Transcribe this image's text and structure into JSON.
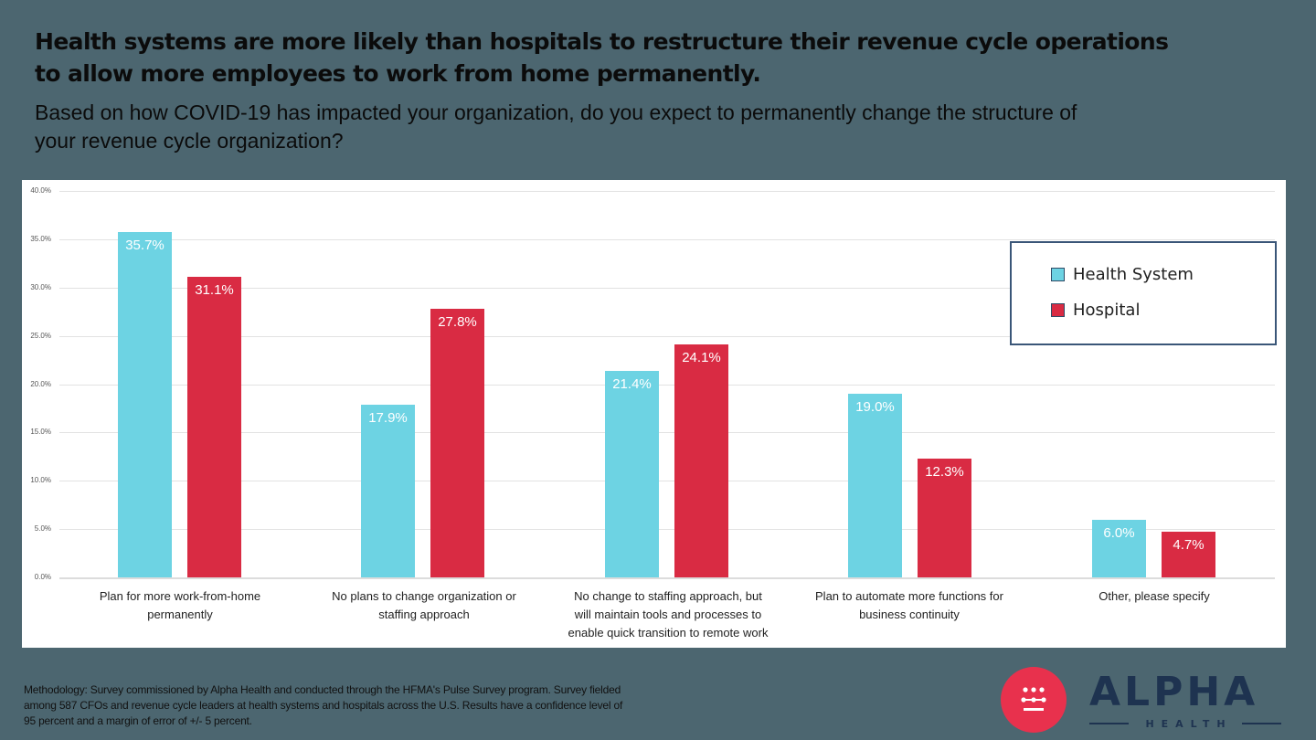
{
  "headline": {
    "line1": "Health systems are more likely than hospitals to restructure their revenue cycle operations",
    "line2": "to allow more employees to work from home permanently."
  },
  "subtitle": {
    "line1": "Based on how COVID-19 has impacted your organization, do you expect to permanently change the structure of",
    "line2": "your revenue cycle organization?"
  },
  "chart_data": {
    "type": "bar",
    "title": "Based on how COVID-19 has impacted your organization, do you expect to permanently change the structure of your revenue cycle organization?",
    "categories": [
      "Plan for more work-from-home permanently",
      "No plans to change organization or staffing approach",
      "No change to staffing approach, but will maintain tools  and processes to enable quick transition to remote work",
      "Plan to automate more functions for business continuity",
      "Other, please specify"
    ],
    "category_lines": [
      [
        "Plan for more work-from-home",
        "permanently"
      ],
      [
        "No plans to change organization or",
        "staffing approach"
      ],
      [
        "No change to staffing approach, but",
        "will maintain tools  and processes to",
        "enable quick transition to remote work"
      ],
      [
        "Plan to automate more functions for",
        "business continuity"
      ],
      [
        "Other, please specify"
      ]
    ],
    "series": [
      {
        "name": "Health System",
        "color": "#6dd3e3",
        "values": [
          35.7,
          17.9,
          21.4,
          19.0,
          6.0
        ],
        "labels": [
          "35.7%",
          "17.9%",
          "21.4%",
          "19.0%",
          "6.0%"
        ]
      },
      {
        "name": "Hospital",
        "color": "#d92b43",
        "values": [
          31.1,
          27.8,
          24.1,
          12.3,
          4.7
        ],
        "labels": [
          "31.1%",
          "27.8%",
          "24.1%",
          "12.3%",
          "4.7%"
        ]
      }
    ],
    "xlabel": "",
    "ylabel": "",
    "ylim": [
      0,
      40
    ],
    "yticks": [
      "0.0%",
      "5.0%",
      "10.0%",
      "15.0%",
      "20.0%",
      "25.0%",
      "30.0%",
      "35.0%",
      "40.0%"
    ],
    "grid": true,
    "legend_position": "upper right"
  },
  "legend": {
    "items": [
      {
        "label": "Health System",
        "color": "#6dd3e3"
      },
      {
        "label": "Hospital",
        "color": "#d92b43"
      }
    ]
  },
  "footer": {
    "methodology_lines": [
      "Methodology: Survey commissioned by Alpha Health and conducted through the HFMA's Pulse Survey program. Survey fielded",
      "among 587 CFOs and revenue cycle leaders at health systems and hospitals across the U.S. Results have a confidence level of",
      "95 percent and a margin of error of +/- 5 percent."
    ]
  },
  "logo": {
    "word": "ALPHA",
    "sub": "HEALTH",
    "circle_color": "#e8314d",
    "text_color": "#1e3350"
  },
  "colors": {
    "background": "#4c6670",
    "health_system": "#6dd3e3",
    "hospital": "#d92b43"
  }
}
